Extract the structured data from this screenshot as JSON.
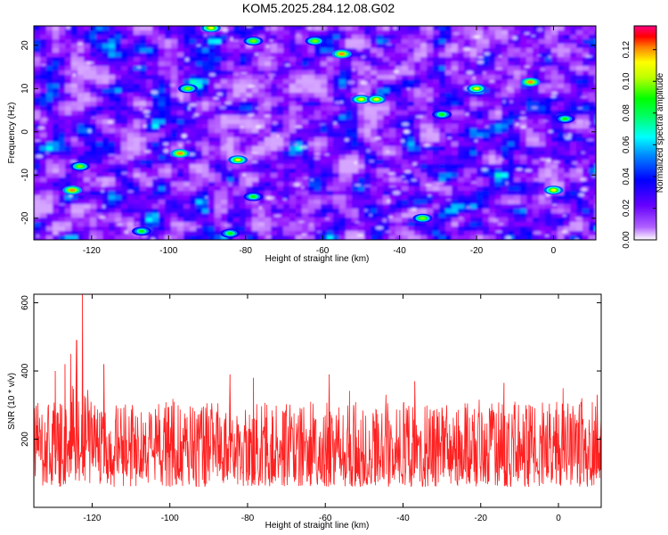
{
  "title": "KOM5.2025.284.12.08.G02",
  "chart_data": [
    {
      "type": "heatmap",
      "title": "KOM5.2025.284.12.08.G02",
      "xlabel": "Height of straight line (km)",
      "ylabel": "Frequency (Hz)",
      "xlim": [
        -135,
        11
      ],
      "ylim": [
        -25,
        24.5
      ],
      "xticks": [
        -120,
        -100,
        -80,
        -60,
        -40,
        -20,
        0
      ],
      "yticks": [
        -20,
        -10,
        0,
        10,
        20
      ],
      "colorbar": {
        "label": "Normalized spectral amplitude",
        "range": [
          0,
          0.135
        ],
        "ticks": [
          "0.00",
          "0.02",
          "0.04",
          "0.06",
          "0.08",
          "0.10",
          "0.12"
        ],
        "colormap": [
          "#ffffff",
          "#8800ff",
          "#0000ff",
          "#00ffff",
          "#00ff00",
          "#ffff00",
          "#ff0000",
          "#ff00aa"
        ]
      },
      "hotspots": [
        {
          "x": -125,
          "y": -13.5,
          "v": 0.11
        },
        {
          "x": -123,
          "y": -8,
          "v": 0.09
        },
        {
          "x": -97,
          "y": -5,
          "v": 0.11
        },
        {
          "x": -95,
          "y": 10,
          "v": 0.09
        },
        {
          "x": -89,
          "y": 24,
          "v": 0.1
        },
        {
          "x": -82,
          "y": -6.5,
          "v": 0.1
        },
        {
          "x": -78,
          "y": 21,
          "v": 0.09
        },
        {
          "x": -78,
          "y": -15,
          "v": 0.08
        },
        {
          "x": -62,
          "y": 21,
          "v": 0.09
        },
        {
          "x": -55,
          "y": 18,
          "v": 0.11
        },
        {
          "x": -50,
          "y": 7.5,
          "v": 0.1
        },
        {
          "x": -46,
          "y": 7.5,
          "v": 0.1
        },
        {
          "x": -34,
          "y": -20,
          "v": 0.09
        },
        {
          "x": -29,
          "y": 4,
          "v": 0.08
        },
        {
          "x": -20,
          "y": 10,
          "v": 0.1
        },
        {
          "x": -6,
          "y": 11.5,
          "v": 0.11
        },
        {
          "x": 0,
          "y": -13.5,
          "v": 0.1
        },
        {
          "x": 3,
          "y": 3,
          "v": 0.08
        },
        {
          "x": -107,
          "y": -23,
          "v": 0.08
        },
        {
          "x": -84,
          "y": -23.5,
          "v": 0.08
        }
      ]
    },
    {
      "type": "line",
      "xlabel": "Height of straight line (km)",
      "ylabel": "SNR (10 * v/v)",
      "xlim": [
        -135,
        11
      ],
      "ylim": [
        0,
        625
      ],
      "xticks": [
        -120,
        -100,
        -80,
        -60,
        -40,
        -20,
        0
      ],
      "yticks": [
        200,
        400,
        600
      ],
      "line_color": "#ff2020",
      "peaks": [
        {
          "x": -122.5,
          "y": 625
        },
        {
          "x": -124,
          "y": 490
        },
        {
          "x": -125.5,
          "y": 450
        },
        {
          "x": -127,
          "y": 420
        },
        {
          "x": -129.5,
          "y": 400
        },
        {
          "x": -117,
          "y": 420
        },
        {
          "x": -84.5,
          "y": 390
        },
        {
          "x": -78.5,
          "y": 380
        },
        {
          "x": -59,
          "y": 390
        },
        {
          "x": -37,
          "y": 370
        },
        {
          "x": -14,
          "y": 365
        },
        {
          "x": 6,
          "y": 320
        },
        {
          "x": 10,
          "y": 330
        }
      ],
      "baseline_range": [
        60,
        310
      ]
    }
  ]
}
